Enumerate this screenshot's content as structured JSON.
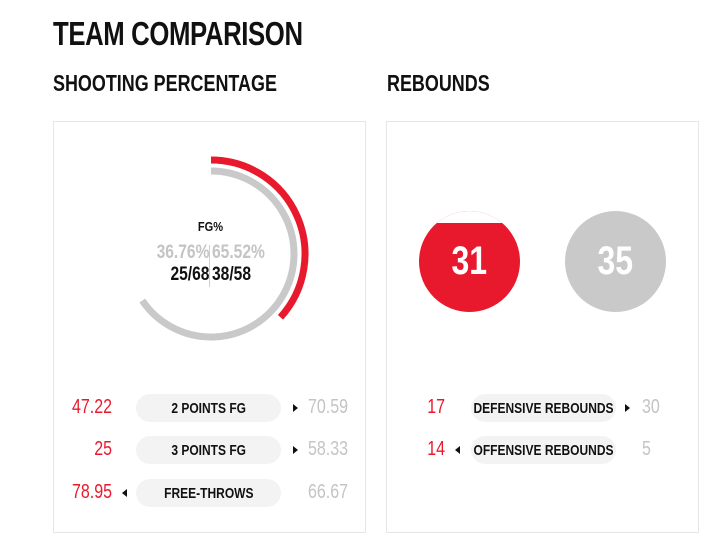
{
  "header": {
    "title": "TEAM COMPARISON"
  },
  "colors": {
    "home": "#e8192c",
    "away": "#c9c9c9",
    "pill": "#f3f3f3"
  },
  "shooting": {
    "title": "SHOOTING PERCENTAGE",
    "fg": {
      "label": "FG%",
      "home_pct": "36.76%",
      "away_pct": "65.52%",
      "home_made": "25/68",
      "away_made": "38/58",
      "home_pct_value": 36.76,
      "away_pct_value": 65.52
    },
    "rows": [
      {
        "label": "2 POINTS FG",
        "home": "47.22",
        "away": "70.59",
        "arrow": "right"
      },
      {
        "label": "3 POINTS FG",
        "home": "25",
        "away": "58.33",
        "arrow": "right"
      },
      {
        "label": "FREE-THROWS",
        "home": "78.95",
        "away": "66.67",
        "arrow": "left"
      }
    ]
  },
  "rebounds": {
    "title": "REBOUNDS",
    "home_total": "31",
    "away_total": "35",
    "rows": [
      {
        "label": "DEFENSIVE REBOUNDS",
        "home": "17",
        "away": "30",
        "arrow": "right"
      },
      {
        "label": "OFFENSIVE REBOUNDS",
        "home": "14",
        "away": "5",
        "arrow": "left"
      }
    ]
  }
}
